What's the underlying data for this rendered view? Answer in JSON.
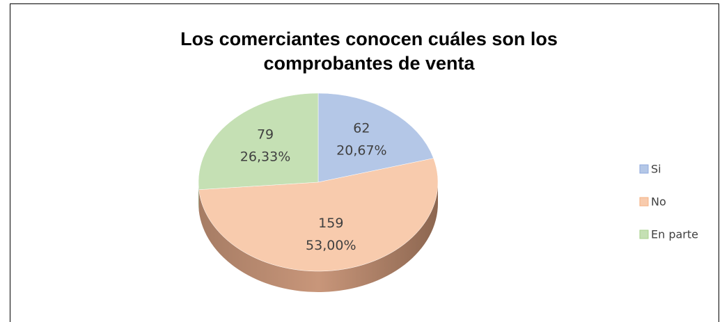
{
  "chart_data": {
    "type": "pie",
    "title": "Los comerciantes conocen cuáles son los comprobantes de venta",
    "categories": [
      "Si",
      "No",
      "En parte"
    ],
    "values": [
      62,
      159,
      79
    ],
    "percent_labels": [
      "20,67%",
      "53,00%",
      "26,33%"
    ],
    "colors": [
      "#b4c7e7",
      "#f8cbad",
      "#c5e0b4"
    ],
    "legend": "right"
  }
}
